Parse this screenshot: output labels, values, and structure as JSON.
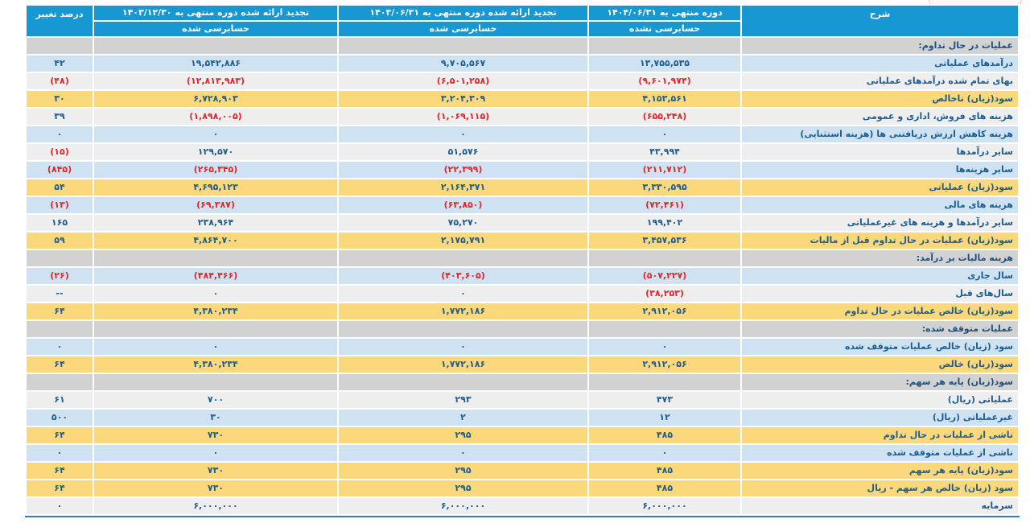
{
  "colors": {
    "header_bg": "#1798d3",
    "header_text": "#ffffff",
    "section_row_bg": "#d2d2d2",
    "row_blue_bg": "#cfe2f1",
    "row_gray_bg": "#eeeeee",
    "row_yellow_bg": "#fbd87b",
    "positive_text": "#1c5e8f",
    "negative_text": "#e0262c",
    "table_bottom_border": "#2c80c4"
  },
  "table": {
    "header": {
      "desc": "شرح",
      "pct": "درصد تغییر",
      "periods": [
        {
          "label": "دوره منتهی به ۱۴۰۴/۰۶/۳۱",
          "audit": "حسابرسی نشده"
        },
        {
          "label": "تجدید ارائه شده دوره منتهی به ۱۴۰۳/۰۶/۳۱",
          "audit": "حسابرسی شده"
        },
        {
          "label": "تجدید ارائه شده دوره منتهی به ۱۴۰۳/۱۲/۳۰",
          "audit": "حسابرسی شده"
        }
      ]
    },
    "rows": [
      {
        "type": "section",
        "variant": "sec",
        "label": "عملیات در حال تداوم:",
        "values": [
          "",
          "",
          "",
          ""
        ]
      },
      {
        "type": "data",
        "variant": "blue",
        "label": "درآمدهای عملیاتی",
        "values": [
          "۱۳,۷۵۵,۵۳۵",
          "۹,۷۰۵,۵۶۷",
          "۱۹,۵۴۲,۸۸۶",
          "۴۲"
        ]
      },
      {
        "type": "data",
        "variant": "gray",
        "label": "بهای تمام شده درآمدهای عملیاتی",
        "values": [
          "(۹,۶۰۱,۹۷۴)",
          "(۶,۵۰۱,۲۵۸)",
          "(۱۲,۸۱۳,۹۸۳)",
          "(۴۸)"
        ]
      },
      {
        "type": "data",
        "variant": "yellow",
        "label": "سود(زیان) ناخالص",
        "values": [
          "۴,۱۵۳,۵۶۱",
          "۳,۲۰۴,۳۰۹",
          "۶,۷۲۸,۹۰۳",
          "۳۰"
        ]
      },
      {
        "type": "data",
        "variant": "gray",
        "label": "هزینه های فروش، اداری و عمومی",
        "values": [
          "(۶۵۵,۲۴۸)",
          "(۱,۰۶۹,۱۱۵)",
          "(۱,۸۹۸,۰۰۵)",
          "۳۹"
        ]
      },
      {
        "type": "data",
        "variant": "blue",
        "label": "هزینه کاهش ارزش دریافتنی ها (هزینه استثنایی)",
        "values": [
          "۰",
          "۰",
          "۰",
          "۰"
        ]
      },
      {
        "type": "data",
        "variant": "gray",
        "label": "سایر درآمدها",
        "values": [
          "۴۳,۹۹۴",
          "۵۱,۵۷۶",
          "۱۲۹,۵۷۰",
          "(۱۵)"
        ]
      },
      {
        "type": "data",
        "variant": "blue",
        "label": "سایر هزینه‌ها",
        "values": [
          "(۲۱۱,۷۱۲)",
          "(۲۲,۳۹۹)",
          "(۲۶۵,۳۴۵)",
          "(۸۴۵)"
        ]
      },
      {
        "type": "data",
        "variant": "yellow",
        "label": "سود(زیان) عملیاتی",
        "values": [
          "۳,۳۳۰,۵۹۵",
          "۲,۱۶۴,۳۷۱",
          "۴,۶۹۵,۱۲۳",
          "۵۴"
        ]
      },
      {
        "type": "data",
        "variant": "blue",
        "label": "هزینه های مالی",
        "values": [
          "(۷۲,۴۶۱)",
          "(۶۳,۸۵۰)",
          "(۶۹,۳۸۷)",
          "(۱۳)"
        ]
      },
      {
        "type": "data",
        "variant": "gray",
        "label": "سایر درآمدها و هزینه های غیرعملیاتی",
        "values": [
          "۱۹۹,۴۰۲",
          "۷۵,۲۷۰",
          "۲۳۸,۹۶۴",
          "۱۶۵"
        ]
      },
      {
        "type": "data",
        "variant": "yellow",
        "label": "سود(زیان) عملیات در حال تداوم قبل از مالیات",
        "values": [
          "۳,۴۵۷,۵۳۶",
          "۲,۱۷۵,۷۹۱",
          "۴,۸۶۴,۷۰۰",
          "۵۹"
        ]
      },
      {
        "type": "section",
        "variant": "sec",
        "label": "هزینه مالیات بر درآمد:",
        "values": [
          "",
          "",
          "",
          ""
        ]
      },
      {
        "type": "data",
        "variant": "blue",
        "label": "سال جاری",
        "values": [
          "(۵۰۷,۲۲۷)",
          "(۴۰۳,۶۰۵)",
          "(۴۸۴,۴۶۶)",
          "(۲۶)"
        ]
      },
      {
        "type": "data",
        "variant": "gray",
        "label": "سال‌های قبل",
        "values": [
          "(۳۸,۲۵۳)",
          "۰",
          "۰",
          "--"
        ]
      },
      {
        "type": "data",
        "variant": "yellow",
        "label": "سود(زیان) خالص عملیات در حال تداوم",
        "values": [
          "۲,۹۱۲,۰۵۶",
          "۱,۷۷۲,۱۸۶",
          "۴,۳۸۰,۲۳۴",
          "۶۴"
        ]
      },
      {
        "type": "section",
        "variant": "sec",
        "label": "عملیات متوقف شده:",
        "values": [
          "",
          "",
          "",
          ""
        ]
      },
      {
        "type": "data",
        "variant": "blue",
        "label": "سود (زیان) خالص عملیات متوقف شده",
        "values": [
          "۰",
          "۰",
          "۰",
          "۰"
        ]
      },
      {
        "type": "data",
        "variant": "yellow",
        "label": "سود(زیان) خالص",
        "values": [
          "۲,۹۱۲,۰۵۶",
          "۱,۷۷۲,۱۸۶",
          "۴,۳۸۰,۲۳۴",
          "۶۴"
        ]
      },
      {
        "type": "section",
        "variant": "sec",
        "label": "سود(زیان) پایه هر سهم:",
        "values": [
          "",
          "",
          "",
          ""
        ]
      },
      {
        "type": "data",
        "variant": "gray",
        "label": "عملیاتی (ریال)",
        "values": [
          "۴۷۳",
          "۲۹۳",
          "۷۰۰",
          "۶۱"
        ]
      },
      {
        "type": "data",
        "variant": "blue",
        "label": "غیرعملیاتی (ریال)",
        "values": [
          "۱۲",
          "۲",
          "۳۰",
          "۵۰۰"
        ]
      },
      {
        "type": "data",
        "variant": "yellow",
        "label": "ناشی از عملیات در حال تداوم",
        "values": [
          "۴۸۵",
          "۲۹۵",
          "۷۳۰",
          "۶۴"
        ]
      },
      {
        "type": "data",
        "variant": "blue",
        "label": "ناشی از عملیات متوقف شده",
        "values": [
          "۰",
          "۰",
          "۰",
          "۰"
        ]
      },
      {
        "type": "data",
        "variant": "yellow",
        "label": "سود(زیان) پایه هر سهم",
        "values": [
          "۴۸۵",
          "۲۹۵",
          "۷۳۰",
          "۶۴"
        ]
      },
      {
        "type": "data",
        "variant": "yellow",
        "label": "سود (زیان) خالص هر سهم - ریال",
        "values": [
          "۴۸۵",
          "۲۹۵",
          "۷۳۰",
          "۶۴"
        ]
      },
      {
        "type": "data",
        "variant": "gray",
        "label": "سرمایه",
        "values": [
          "۶,۰۰۰,۰۰۰",
          "۶,۰۰۰,۰۰۰",
          "۶,۰۰۰,۰۰۰",
          "۰"
        ]
      }
    ]
  }
}
